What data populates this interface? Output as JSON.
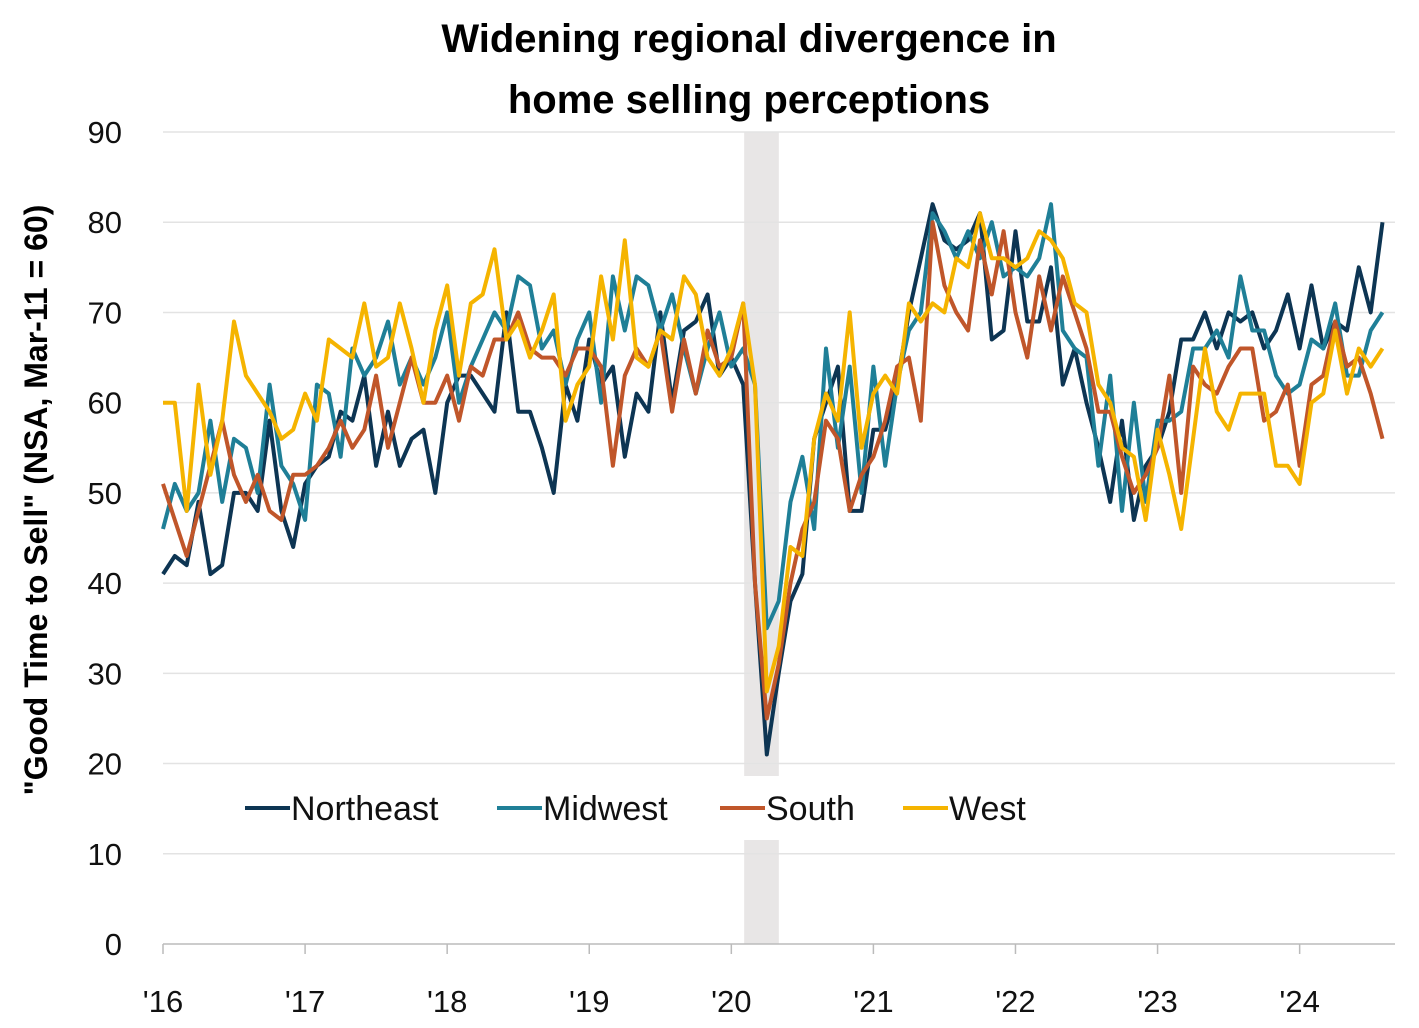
{
  "chart_data": {
    "type": "line",
    "title": [
      "Widening regional divergence in",
      "home selling perceptions"
    ],
    "xlabel": "",
    "ylabel": "\"Good Time to Sell\" (NSA, Mar-11 = 60)",
    "ylim": [
      0,
      90
    ],
    "yticks": [
      0,
      10,
      20,
      30,
      40,
      50,
      60,
      70,
      80,
      90
    ],
    "xticks": [
      "'16",
      "'17",
      "'18",
      "'19",
      "'20",
      "'21",
      "'22",
      "'23",
      "'24"
    ],
    "x_start": "2016-01",
    "frequency": "monthly",
    "grid": true,
    "legend_position": "bottom-left-inside",
    "recession_shading": {
      "start": "2020-02",
      "end": "2020-04",
      "color": "#e8e6e6"
    },
    "series": [
      {
        "name": "Northeast",
        "color": "#0d3553",
        "values": [
          41,
          43,
          42,
          49,
          41,
          42,
          50,
          50,
          48,
          58,
          48,
          44,
          51,
          53,
          54,
          59,
          58,
          63,
          53,
          59,
          53,
          56,
          57,
          50,
          60,
          63,
          63,
          61,
          59,
          70,
          59,
          59,
          55,
          50,
          62,
          58,
          67,
          62,
          64,
          54,
          61,
          59,
          70,
          60,
          68,
          69,
          72,
          63,
          65,
          62,
          40,
          21,
          30,
          38,
          41,
          56,
          60,
          64,
          48,
          48,
          57,
          57,
          62,
          70,
          76,
          82,
          78,
          77,
          78,
          81,
          67,
          68,
          79,
          69,
          69,
          75,
          62,
          66,
          60,
          55,
          49,
          58,
          47,
          53,
          55,
          59,
          67,
          67,
          70,
          66,
          70,
          69,
          70,
          66,
          68,
          72,
          66,
          73,
          66,
          69,
          68,
          75,
          70,
          80
        ]
      },
      {
        "name": "Midwest",
        "color": "#1f7f97",
        "values": [
          46,
          51,
          48,
          50,
          58,
          49,
          56,
          55,
          50,
          62,
          53,
          51,
          47,
          62,
          61,
          54,
          66,
          63,
          65,
          69,
          62,
          65,
          62,
          65,
          70,
          60,
          64,
          67,
          70,
          68,
          74,
          73,
          66,
          68,
          62,
          67,
          70,
          60,
          74,
          68,
          74,
          73,
          68,
          72,
          66,
          61,
          66,
          70,
          64,
          66,
          62,
          35,
          38,
          49,
          54,
          46,
          66,
          55,
          64,
          50,
          64,
          53,
          62,
          68,
          70,
          81,
          79,
          76,
          79,
          76,
          80,
          74,
          75,
          74,
          76,
          82,
          68,
          66,
          65,
          53,
          63,
          48,
          60,
          49,
          58,
          58,
          59,
          66,
          66,
          68,
          65,
          74,
          68,
          68,
          63,
          61,
          62,
          67,
          66,
          71,
          63,
          63,
          68,
          70
        ]
      },
      {
        "name": "South",
        "color": "#c0562a",
        "values": [
          51,
          47,
          43,
          48,
          53,
          58,
          52,
          49,
          52,
          48,
          47,
          52,
          52,
          53,
          55,
          58,
          55,
          57,
          63,
          55,
          60,
          65,
          60,
          60,
          63,
          58,
          64,
          63,
          67,
          67,
          70,
          66,
          65,
          65,
          63,
          66,
          66,
          64,
          53,
          63,
          66,
          64,
          68,
          59,
          67,
          61,
          68,
          64,
          65,
          71,
          40,
          25,
          31,
          40,
          46,
          49,
          58,
          56,
          48,
          52,
          54,
          58,
          64,
          65,
          58,
          80,
          73,
          70,
          68,
          78,
          72,
          79,
          70,
          65,
          74,
          68,
          74,
          70,
          66,
          59,
          59,
          54,
          50,
          52,
          55,
          63,
          50,
          64,
          62,
          61,
          64,
          66,
          66,
          58,
          59,
          62,
          53,
          62,
          63,
          69,
          64,
          65,
          61,
          56
        ]
      },
      {
        "name": "West",
        "color": "#f5b400",
        "values": [
          60,
          60,
          48,
          62,
          52,
          58,
          69,
          63,
          61,
          59,
          56,
          57,
          61,
          58,
          67,
          66,
          65,
          71,
          64,
          65,
          71,
          66,
          60,
          68,
          73,
          63,
          71,
          72,
          77,
          67,
          69,
          65,
          68,
          72,
          58,
          62,
          64,
          74,
          67,
          78,
          65,
          64,
          68,
          67,
          74,
          72,
          65,
          63,
          66,
          71,
          62,
          28,
          33,
          44,
          43,
          56,
          61,
          58,
          70,
          55,
          61,
          63,
          61,
          71,
          69,
          71,
          70,
          76,
          75,
          81,
          76,
          76,
          75,
          76,
          79,
          78,
          76,
          71,
          70,
          62,
          60,
          55,
          54,
          47,
          57,
          52,
          46,
          56,
          66,
          59,
          57,
          61,
          61,
          61,
          53,
          53,
          51,
          60,
          61,
          68,
          61,
          66,
          64,
          66
        ]
      }
    ]
  }
}
